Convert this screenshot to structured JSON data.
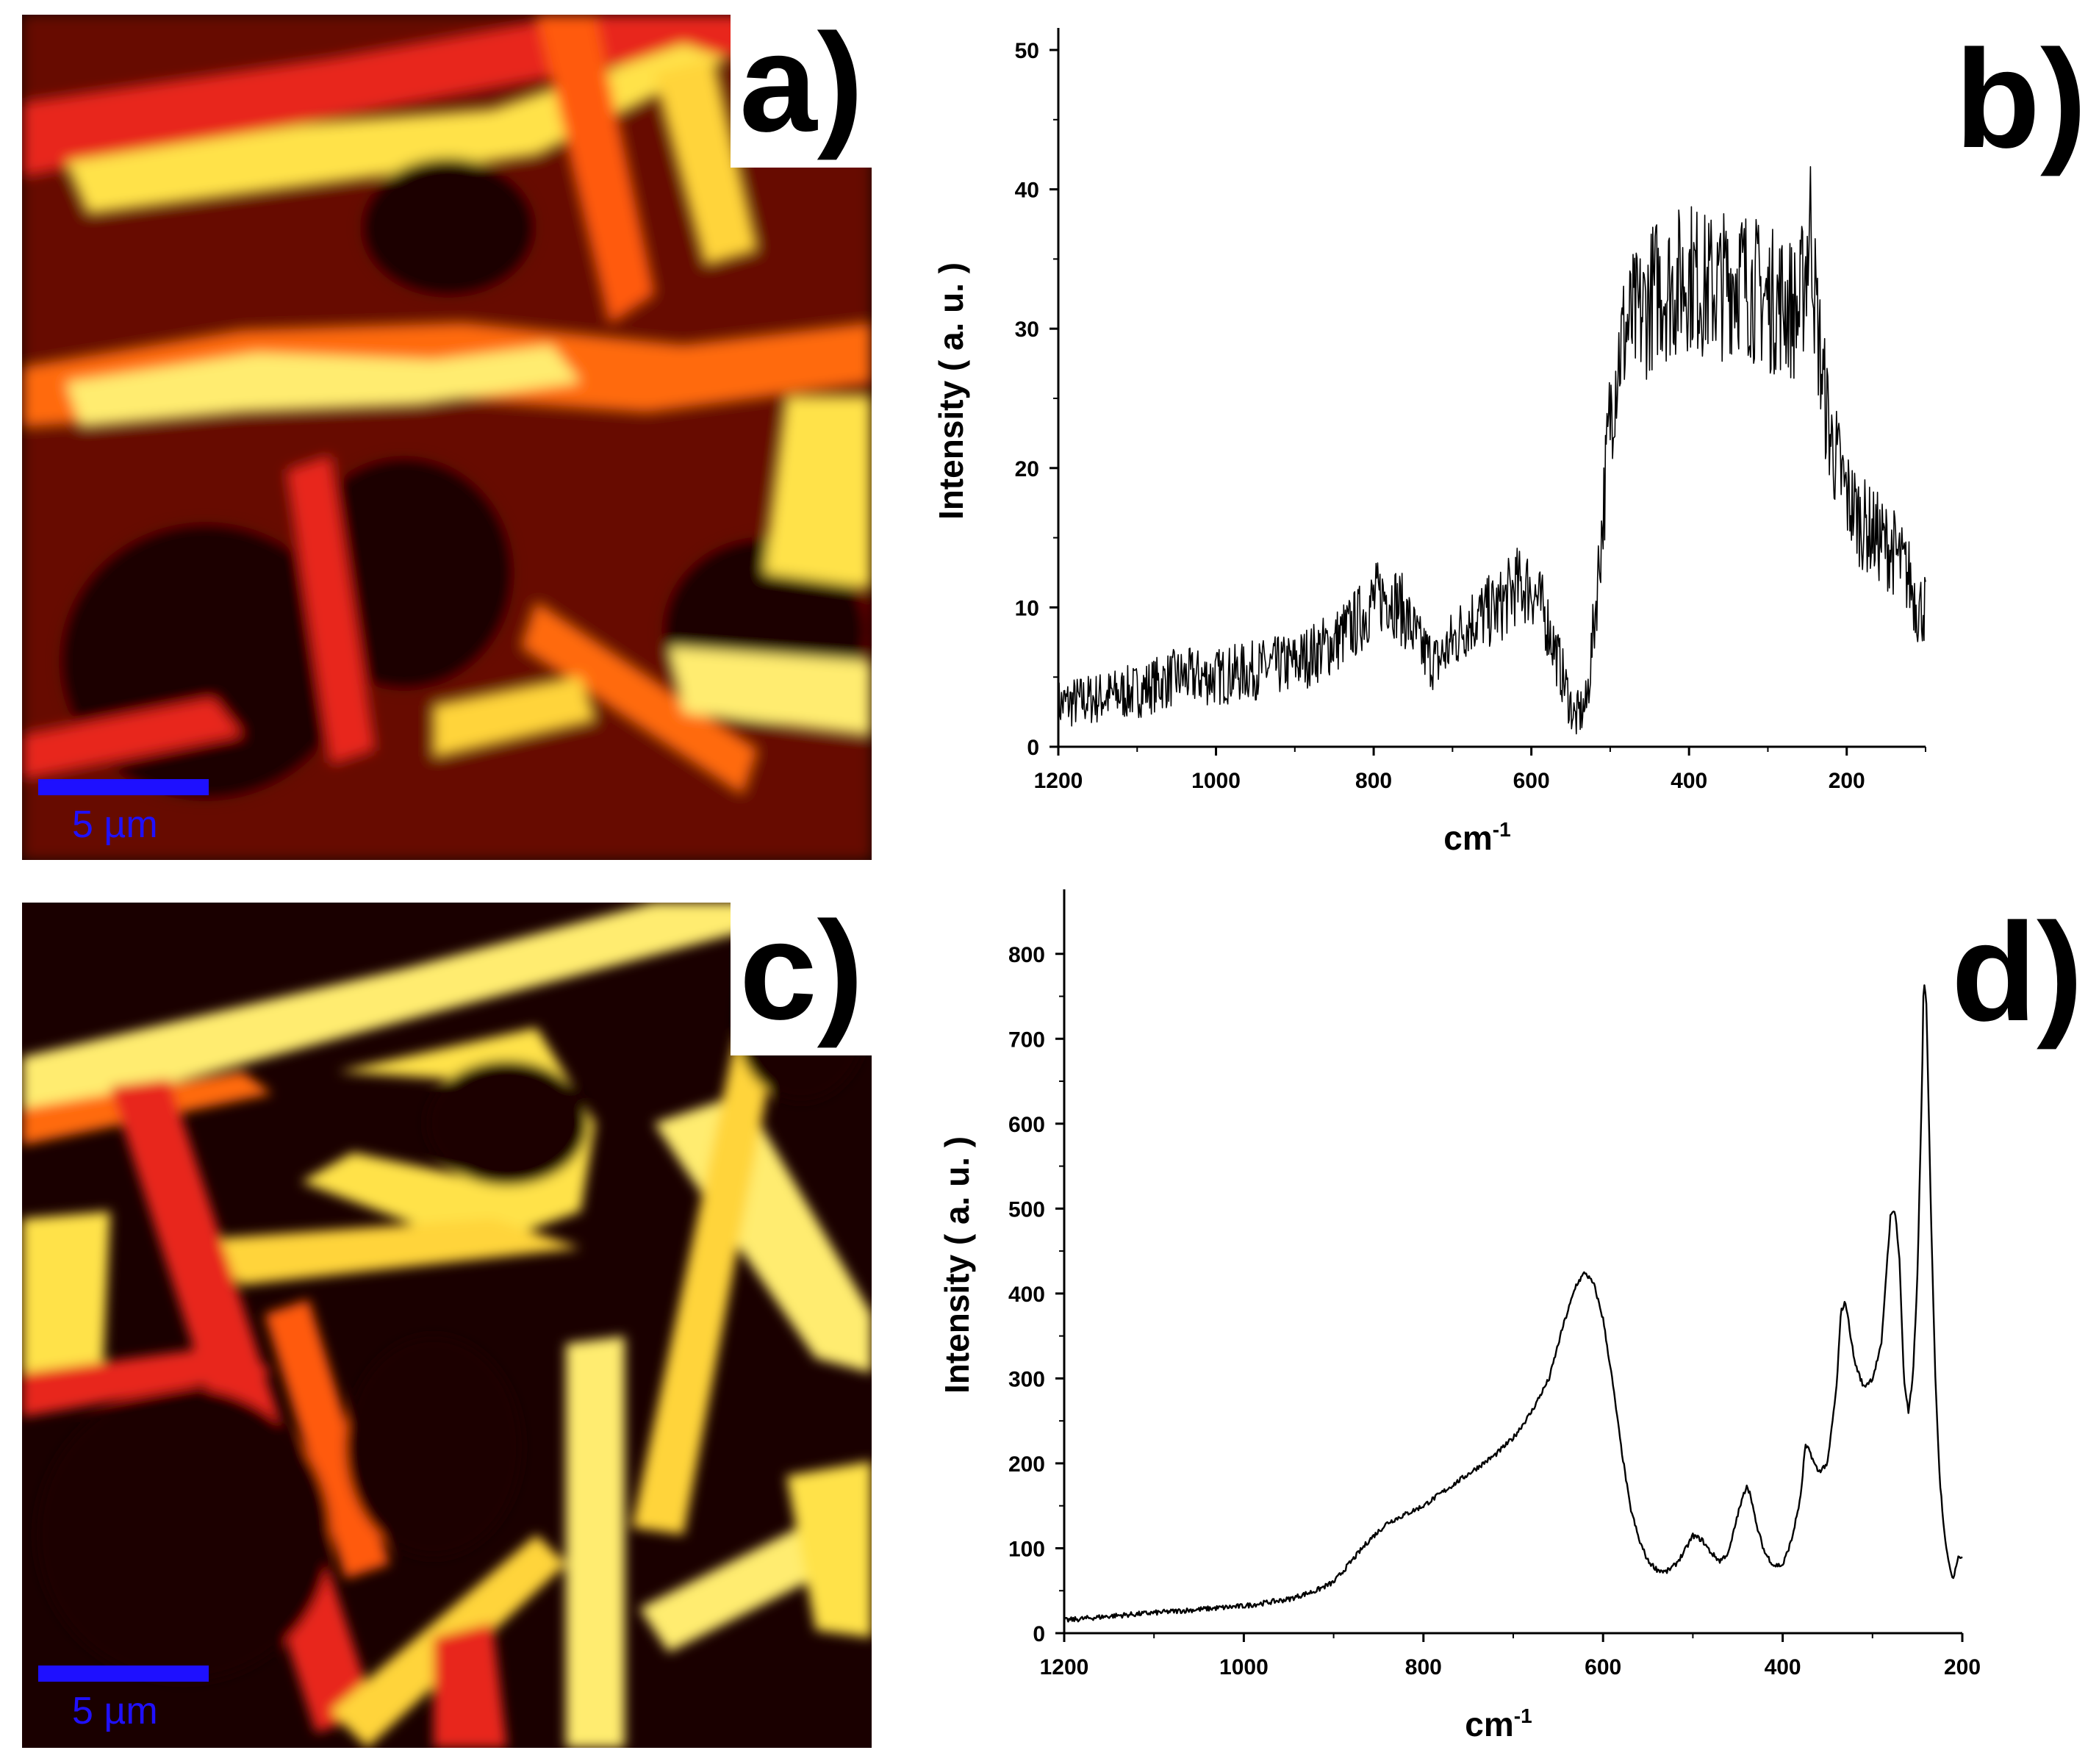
{
  "panels": {
    "a": {
      "letter": "a)",
      "scale_label": "5 µm"
    },
    "b": {
      "letter": "b)"
    },
    "c": {
      "letter": "c)",
      "scale_label": "5 µm"
    },
    "d": {
      "letter": "d)"
    }
  },
  "colors": {
    "map_dark": "#1a0000",
    "map_red": "#e8271a",
    "map_orange": "#ff7a12",
    "map_yellow": "#ffee60",
    "scale_bar": "#1e10ff",
    "line": "#000000"
  },
  "chart_data": [
    {
      "panel": "b",
      "type": "line",
      "xlabel": "cm",
      "xlabel_sup": "-1",
      "ylabel": "Intensity ( a. u. )",
      "xlim": [
        1200,
        100
      ],
      "ylim": [
        0,
        50
      ],
      "x_ticks": [
        1200,
        1000,
        800,
        600,
        400,
        200
      ],
      "y_ticks": [
        0,
        10,
        20,
        30,
        40,
        50
      ],
      "noisy": true,
      "series": [
        {
          "x": [
            1200,
            1150,
            1100,
            1050,
            1000,
            950,
            900,
            850,
            820,
            800,
            780,
            760,
            740,
            720,
            700,
            680,
            660,
            640,
            620,
            600,
            580,
            560,
            545,
            530,
            520,
            510,
            500,
            490,
            480,
            460,
            440,
            420,
            400,
            380,
            360,
            340,
            320,
            300,
            280,
            260,
            245,
            240,
            230,
            220,
            200,
            180,
            160,
            140,
            120,
            110
          ],
          "y": [
            3,
            3.5,
            4,
            5,
            5,
            5.5,
            6,
            7.5,
            9,
            10.5,
            11,
            9.5,
            7,
            6,
            7.5,
            9,
            9.5,
            10,
            11.5,
            11.5,
            9,
            5,
            2,
            3,
            9,
            16,
            24,
            28,
            30,
            31,
            33,
            33,
            34,
            33,
            33,
            34,
            33,
            32,
            32,
            31,
            38,
            32,
            26,
            22,
            18,
            16,
            15,
            14,
            12,
            10
          ]
        }
      ]
    },
    {
      "panel": "d",
      "type": "line",
      "xlabel": "cm",
      "xlabel_sup": "-1",
      "ylabel": "Intensity ( a. u. )",
      "xlim": [
        1200,
        200
      ],
      "ylim": [
        0,
        850
      ],
      "x_ticks": [
        1200,
        1000,
        800,
        600,
        400,
        200
      ],
      "y_ticks": [
        0,
        100,
        200,
        300,
        400,
        500,
        600,
        700,
        800
      ],
      "noisy": false,
      "series": [
        {
          "x": [
            1200,
            1150,
            1100,
            1050,
            1000,
            950,
            920,
            900,
            880,
            860,
            840,
            820,
            800,
            780,
            760,
            740,
            720,
            700,
            680,
            660,
            645,
            630,
            620,
            610,
            600,
            590,
            580,
            570,
            560,
            550,
            540,
            530,
            520,
            510,
            500,
            490,
            480,
            470,
            460,
            450,
            440,
            435,
            430,
            420,
            410,
            400,
            390,
            380,
            375,
            370,
            365,
            360,
            350,
            340,
            335,
            330,
            320,
            310,
            300,
            290,
            285,
            280,
            275,
            270,
            265,
            260,
            255,
            250,
            245,
            243,
            240,
            235,
            230,
            225,
            220,
            215,
            210,
            205
          ],
          "y": [
            15,
            20,
            24,
            28,
            32,
            40,
            50,
            60,
            85,
            110,
            130,
            140,
            150,
            165,
            180,
            195,
            210,
            230,
            260,
            300,
            360,
            410,
            425,
            410,
            370,
            300,
            220,
            150,
            110,
            85,
            75,
            72,
            80,
            95,
            115,
            110,
            95,
            85,
            95,
            140,
            175,
            160,
            130,
            95,
            80,
            80,
            110,
            160,
            220,
            215,
            200,
            190,
            200,
            290,
            380,
            390,
            320,
            290,
            300,
            340,
            420,
            490,
            500,
            440,
            300,
            260,
            300,
            420,
            640,
            770,
            740,
            500,
            300,
            180,
            120,
            80,
            65,
            90
          ]
        }
      ]
    }
  ]
}
